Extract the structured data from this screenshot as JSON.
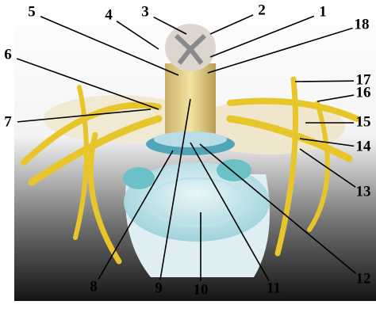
{
  "labels": [
    {
      "text": "1"
    },
    {
      "text": "2"
    },
    {
      "text": "3"
    },
    {
      "text": "4"
    },
    {
      "text": "5"
    },
    {
      "text": "6"
    },
    {
      "text": "7"
    },
    {
      "text": "8"
    },
    {
      "text": "9"
    },
    {
      "text": "10"
    },
    {
      "text": "11"
    },
    {
      "text": "12"
    },
    {
      "text": "13"
    },
    {
      "text": "14"
    },
    {
      "text": "15"
    },
    {
      "text": "16"
    },
    {
      "text": "17"
    },
    {
      "text": "18"
    }
  ]
}
